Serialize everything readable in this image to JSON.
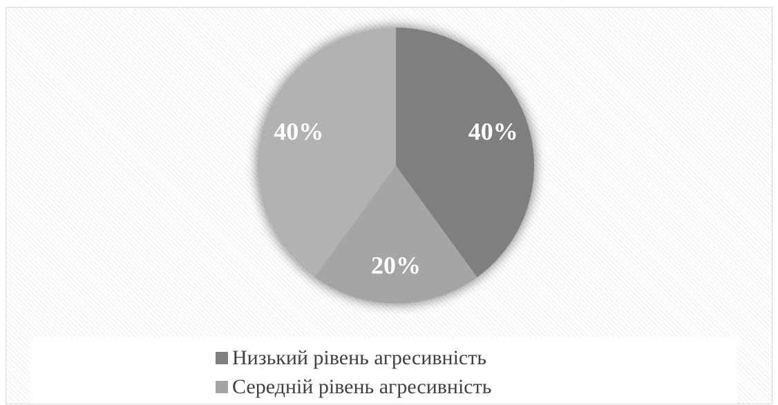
{
  "chart_data": {
    "type": "pie",
    "title": "",
    "start_angle_deg": 0,
    "direction": "clockwise",
    "slices": [
      {
        "label": "Низький рівень агресивність",
        "value": 40,
        "display": "40%",
        "color": "#7f7f7f",
        "in_legend": true
      },
      {
        "label": "Середній рівень агресивність",
        "value": 20,
        "display": "20%",
        "color": "#a5a5a5",
        "in_legend": true
      },
      {
        "label": "",
        "value": 40,
        "display": "40%",
        "color": "#b2b2b2",
        "in_legend": false
      }
    ],
    "data_labels": true,
    "legend_position": "bottom",
    "legend": [
      {
        "label": "Низький рівень агресивність",
        "color": "#7f7f7f"
      },
      {
        "label": "Середній рівень агресивність",
        "color": "#a5a5a5"
      }
    ]
  }
}
